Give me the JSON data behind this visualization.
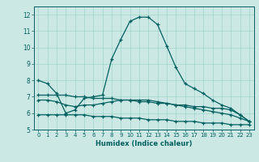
{
  "xlabel": "Humidex (Indice chaleur)",
  "ylabel": "",
  "background_color": "#cce8e4",
  "grid_color": "#a0d4ce",
  "line_color": "#006060",
  "xlim": [
    -0.5,
    23.5
  ],
  "ylim": [
    5,
    12.5
  ],
  "yticks": [
    5,
    6,
    7,
    8,
    9,
    10,
    11,
    12
  ],
  "xticks": [
    0,
    1,
    2,
    3,
    4,
    5,
    6,
    7,
    8,
    9,
    10,
    11,
    12,
    13,
    14,
    15,
    16,
    17,
    18,
    19,
    20,
    21,
    22,
    23
  ],
  "line1_x": [
    0,
    1,
    2,
    3,
    4,
    5,
    6,
    7,
    8,
    9,
    10,
    11,
    12,
    13,
    14,
    15,
    16,
    17,
    18,
    19,
    20,
    21,
    22,
    23
  ],
  "line1_y": [
    8.0,
    7.8,
    7.2,
    6.0,
    6.2,
    6.9,
    7.0,
    7.1,
    9.3,
    10.5,
    11.6,
    11.85,
    11.85,
    11.4,
    10.1,
    8.8,
    7.8,
    7.5,
    7.2,
    6.8,
    6.5,
    6.3,
    5.9,
    5.5
  ],
  "line2_x": [
    0,
    1,
    2,
    3,
    4,
    5,
    6,
    7,
    8,
    9,
    10,
    11,
    12,
    13,
    14,
    15,
    16,
    17,
    18,
    19,
    20,
    21,
    22,
    23
  ],
  "line2_y": [
    7.1,
    7.1,
    7.1,
    7.1,
    7.0,
    7.0,
    6.9,
    6.9,
    6.9,
    6.8,
    6.8,
    6.7,
    6.7,
    6.6,
    6.6,
    6.5,
    6.5,
    6.4,
    6.4,
    6.3,
    6.3,
    6.2,
    5.9,
    5.5
  ],
  "line3_x": [
    0,
    1,
    2,
    3,
    4,
    5,
    6,
    7,
    8,
    9,
    10,
    11,
    12,
    13,
    14,
    15,
    16,
    17,
    18,
    19,
    20,
    21,
    22,
    23
  ],
  "line3_y": [
    6.8,
    6.8,
    6.7,
    6.5,
    6.4,
    6.5,
    6.5,
    6.6,
    6.7,
    6.8,
    6.8,
    6.8,
    6.8,
    6.7,
    6.6,
    6.5,
    6.4,
    6.3,
    6.2,
    6.1,
    6.0,
    5.9,
    5.7,
    5.5
  ],
  "line4_x": [
    0,
    1,
    2,
    3,
    4,
    5,
    6,
    7,
    8,
    9,
    10,
    11,
    12,
    13,
    14,
    15,
    16,
    17,
    18,
    19,
    20,
    21,
    22,
    23
  ],
  "line4_y": [
    5.9,
    5.9,
    5.9,
    5.9,
    5.9,
    5.9,
    5.8,
    5.8,
    5.8,
    5.7,
    5.7,
    5.7,
    5.6,
    5.6,
    5.6,
    5.5,
    5.5,
    5.5,
    5.4,
    5.4,
    5.4,
    5.3,
    5.3,
    5.3
  ]
}
